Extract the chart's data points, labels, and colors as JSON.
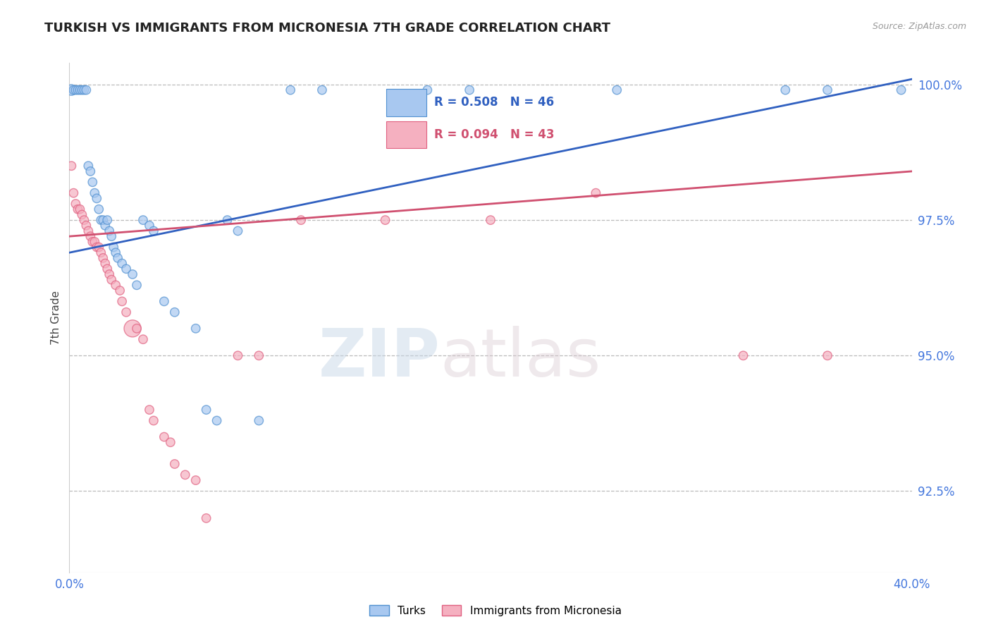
{
  "title": "TURKISH VS IMMIGRANTS FROM MICRONESIA 7TH GRADE CORRELATION CHART",
  "source_text": "Source: ZipAtlas.com",
  "ylabel": "7th Grade",
  "xlim": [
    0.0,
    0.4
  ],
  "ylim": [
    0.91,
    1.004
  ],
  "yticks": [
    0.925,
    0.95,
    0.975,
    1.0
  ],
  "ytick_labels": [
    "92.5%",
    "95.0%",
    "97.5%",
    "100.0%"
  ],
  "xticks": [
    0.0,
    0.4
  ],
  "xtick_labels": [
    "0.0%",
    "40.0%"
  ],
  "legend_r_blue": "R = 0.508",
  "legend_n_blue": "N = 46",
  "legend_r_pink": "R = 0.094",
  "legend_n_pink": "N = 43",
  "legend_label_blue": "Turks",
  "legend_label_pink": "Immigrants from Micronesia",
  "blue_color": "#A8C8F0",
  "pink_color": "#F5B0C0",
  "blue_edge_color": "#5090D0",
  "pink_edge_color": "#E06080",
  "blue_line_color": "#3060C0",
  "pink_line_color": "#D05070",
  "watermark_zip": "ZIP",
  "watermark_atlas": "atlas",
  "blue_dots": [
    [
      0.001,
      0.999
    ],
    [
      0.002,
      0.999
    ],
    [
      0.003,
      0.999
    ],
    [
      0.004,
      0.999
    ],
    [
      0.005,
      0.999
    ],
    [
      0.006,
      0.999
    ],
    [
      0.007,
      0.999
    ],
    [
      0.008,
      0.999
    ],
    [
      0.009,
      0.985
    ],
    [
      0.01,
      0.984
    ],
    [
      0.011,
      0.982
    ],
    [
      0.012,
      0.98
    ],
    [
      0.013,
      0.979
    ],
    [
      0.014,
      0.977
    ],
    [
      0.015,
      0.975
    ],
    [
      0.016,
      0.975
    ],
    [
      0.017,
      0.974
    ],
    [
      0.018,
      0.975
    ],
    [
      0.019,
      0.973
    ],
    [
      0.02,
      0.972
    ],
    [
      0.021,
      0.97
    ],
    [
      0.022,
      0.969
    ],
    [
      0.023,
      0.968
    ],
    [
      0.025,
      0.967
    ],
    [
      0.027,
      0.966
    ],
    [
      0.03,
      0.965
    ],
    [
      0.032,
      0.963
    ],
    [
      0.035,
      0.975
    ],
    [
      0.038,
      0.974
    ],
    [
      0.04,
      0.973
    ],
    [
      0.045,
      0.96
    ],
    [
      0.05,
      0.958
    ],
    [
      0.06,
      0.955
    ],
    [
      0.065,
      0.94
    ],
    [
      0.07,
      0.938
    ],
    [
      0.075,
      0.975
    ],
    [
      0.08,
      0.973
    ],
    [
      0.09,
      0.938
    ],
    [
      0.105,
      0.999
    ],
    [
      0.12,
      0.999
    ],
    [
      0.17,
      0.999
    ],
    [
      0.19,
      0.999
    ],
    [
      0.26,
      0.999
    ],
    [
      0.34,
      0.999
    ],
    [
      0.36,
      0.999
    ],
    [
      0.395,
      0.999
    ]
  ],
  "pink_dots": [
    [
      0.001,
      0.985
    ],
    [
      0.002,
      0.98
    ],
    [
      0.003,
      0.978
    ],
    [
      0.004,
      0.977
    ],
    [
      0.005,
      0.977
    ],
    [
      0.006,
      0.976
    ],
    [
      0.007,
      0.975
    ],
    [
      0.008,
      0.974
    ],
    [
      0.009,
      0.973
    ],
    [
      0.01,
      0.972
    ],
    [
      0.011,
      0.971
    ],
    [
      0.012,
      0.971
    ],
    [
      0.013,
      0.97
    ],
    [
      0.014,
      0.97
    ],
    [
      0.015,
      0.969
    ],
    [
      0.016,
      0.968
    ],
    [
      0.017,
      0.967
    ],
    [
      0.018,
      0.966
    ],
    [
      0.019,
      0.965
    ],
    [
      0.02,
      0.964
    ],
    [
      0.022,
      0.963
    ],
    [
      0.024,
      0.962
    ],
    [
      0.025,
      0.96
    ],
    [
      0.027,
      0.958
    ],
    [
      0.03,
      0.955
    ],
    [
      0.032,
      0.955
    ],
    [
      0.035,
      0.953
    ],
    [
      0.038,
      0.94
    ],
    [
      0.04,
      0.938
    ],
    [
      0.045,
      0.935
    ],
    [
      0.048,
      0.934
    ],
    [
      0.05,
      0.93
    ],
    [
      0.055,
      0.928
    ],
    [
      0.06,
      0.927
    ],
    [
      0.065,
      0.92
    ],
    [
      0.08,
      0.95
    ],
    [
      0.09,
      0.95
    ],
    [
      0.11,
      0.975
    ],
    [
      0.15,
      0.975
    ],
    [
      0.2,
      0.975
    ],
    [
      0.25,
      0.98
    ],
    [
      0.32,
      0.95
    ],
    [
      0.36,
      0.95
    ]
  ],
  "blue_dot_sizes": [
    120,
    80,
    80,
    80,
    80,
    80,
    80,
    80,
    80,
    80,
    80,
    80,
    80,
    80,
    80,
    80,
    80,
    80,
    80,
    80,
    80,
    80,
    80,
    80,
    80,
    80,
    80,
    80,
    80,
    80,
    80,
    80,
    80,
    80,
    80,
    80,
    80,
    80,
    80,
    80,
    80,
    80,
    80,
    80,
    80,
    80
  ],
  "pink_dot_sizes": [
    80,
    80,
    80,
    80,
    80,
    80,
    80,
    80,
    80,
    80,
    80,
    80,
    80,
    80,
    80,
    80,
    80,
    80,
    80,
    80,
    80,
    80,
    80,
    80,
    300,
    80,
    80,
    80,
    80,
    80,
    80,
    80,
    80,
    80,
    80,
    80,
    80,
    80,
    80,
    80,
    80,
    80,
    80
  ],
  "blue_trend_x": [
    0.0,
    0.4
  ],
  "blue_trend_y": [
    0.969,
    1.001
  ],
  "pink_trend_x": [
    0.0,
    0.4
  ],
  "pink_trend_y": [
    0.972,
    0.984
  ]
}
